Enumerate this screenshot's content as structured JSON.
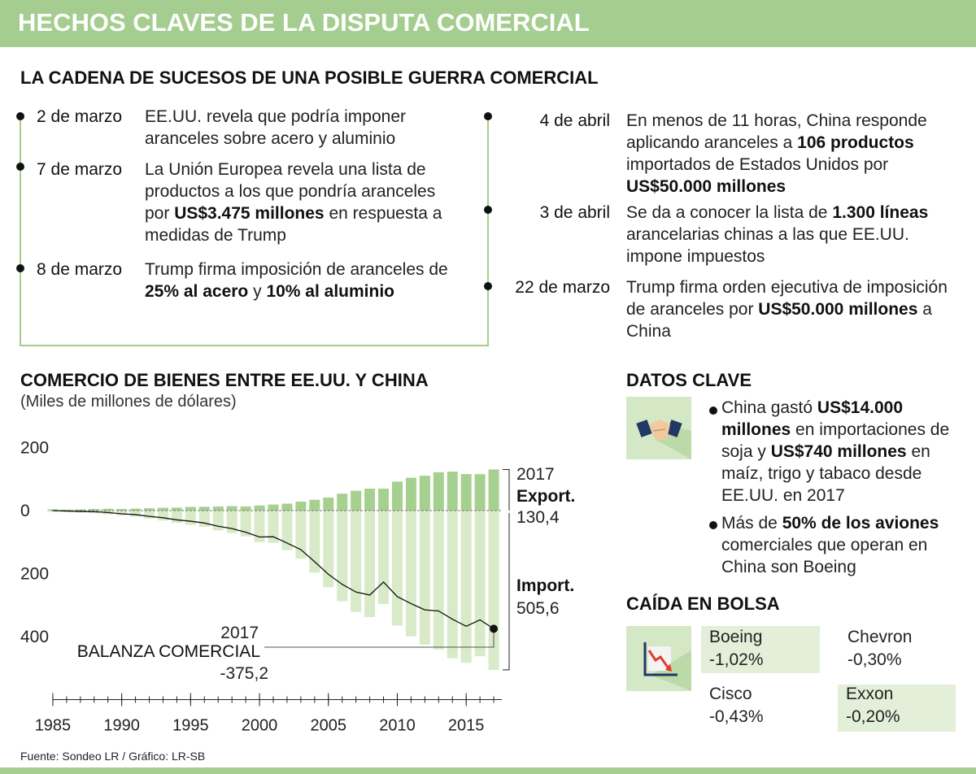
{
  "header": {
    "title": "HECHOS CLAVES DE LA DISPUTA COMERCIAL"
  },
  "timeline": {
    "title": "LA CADENA DE SUCESOS DE UNA POSIBLE GUERRA COMERCIAL",
    "left": [
      {
        "date": "2 de marzo",
        "parts": [
          "EE.UU. revela que podría imponer aranceles sobre acero y aluminio"
        ]
      },
      {
        "date": "7 de marzo",
        "parts": [
          "La Unión Europea revela una lista de productos a los que pondría aranceles por ",
          "US$3.475 millones",
          " en respuesta a medidas de Trump"
        ]
      },
      {
        "date": "8 de marzo",
        "parts": [
          "Trump firma imposición de aranceles de ",
          "25% al acero",
          " y ",
          "10% al aluminio"
        ]
      }
    ],
    "right": [
      {
        "date": "4 de abril",
        "parts": [
          "En menos de 11 horas, China responde aplicando aranceles a ",
          "106  productos",
          " importados de Estados Unidos por ",
          "US$50.000 millones"
        ]
      },
      {
        "date": "3 de abril",
        "parts": [
          "Se da a conocer la lista de ",
          "1.300 líneas",
          " arancelarias chinas a las que EE.UU. impone impuestos"
        ]
      },
      {
        "date": "22 de marzo",
        "parts": [
          "Trump firma orden ejecutiva de imposición de aranceles por ",
          "US$50.000 millones",
          " a China"
        ]
      }
    ]
  },
  "chart_data": {
    "type": "bar",
    "title": "COMERCIO DE BIENES ENTRE EE.UU. Y CHINA",
    "subtitle": "(Miles de millones de dólares)",
    "x": [
      1985,
      1986,
      1987,
      1988,
      1989,
      1990,
      1991,
      1992,
      1993,
      1994,
      1995,
      1996,
      1997,
      1998,
      1999,
      2000,
      2001,
      2002,
      2003,
      2004,
      2005,
      2006,
      2007,
      2008,
      2009,
      2010,
      2011,
      2012,
      2013,
      2014,
      2015,
      2016,
      2017
    ],
    "xlim": [
      1984,
      2018
    ],
    "xticks": [
      1985,
      1990,
      1995,
      2000,
      2005,
      2010,
      2015
    ],
    "ylim": [
      -600,
      240
    ],
    "yticks": [
      {
        "value": -400,
        "label": "400"
      },
      {
        "value": -200,
        "label": "200"
      },
      0,
      200
    ],
    "series": [
      {
        "name": "Export.",
        "color": "#a6d08f",
        "values": [
          3.9,
          3.1,
          3.5,
          5.0,
          5.8,
          4.8,
          6.3,
          7.4,
          8.8,
          9.3,
          11.8,
          12.0,
          12.9,
          14.2,
          13.1,
          16.2,
          19.2,
          22.1,
          28.4,
          34.4,
          41.2,
          53.7,
          62.9,
          69.7,
          69.5,
          91.9,
          104.1,
          110.5,
          121.7,
          123.7,
          115.9,
          115.6,
          130.4
        ],
        "value_labels": [
          null,
          null,
          null,
          null,
          null,
          null,
          null,
          null,
          null,
          null,
          null,
          null,
          null,
          null,
          null,
          null,
          null,
          null,
          null,
          null,
          null,
          null,
          null,
          null,
          null,
          null,
          null,
          null,
          null,
          null,
          null,
          null,
          "130,4"
        ]
      },
      {
        "name": "Import.",
        "color": "#d8eac8",
        "values": [
          -3.9,
          -4.8,
          -6.3,
          -8.5,
          -12.0,
          -15.2,
          -19.0,
          -25.7,
          -31.5,
          -38.8,
          -45.5,
          -51.5,
          -62.6,
          -71.2,
          -81.8,
          -100.0,
          -102.3,
          -125.2,
          -152.4,
          -196.7,
          -243.5,
          -287.8,
          -321.4,
          -337.8,
          -296.4,
          -364.9,
          -399.4,
          -425.6,
          -440.4,
          -468.5,
          -483.2,
          -462.4,
          -505.6
        ],
        "value_labels": [
          null,
          null,
          null,
          null,
          null,
          null,
          null,
          null,
          null,
          null,
          null,
          null,
          null,
          null,
          null,
          null,
          null,
          null,
          null,
          null,
          null,
          null,
          null,
          null,
          null,
          null,
          null,
          null,
          null,
          null,
          null,
          null,
          "505,6"
        ]
      },
      {
        "name": "BALANZA COMERCIAL",
        "type": "line",
        "color": "#111111",
        "values": [
          0,
          -1.7,
          -2.8,
          -3.5,
          -6.2,
          -10.4,
          -12.7,
          -18.3,
          -22.7,
          -29.5,
          -33.7,
          -39.5,
          -49.7,
          -57.0,
          -68.7,
          -83.8,
          -83.1,
          -103.1,
          -124.0,
          -162.3,
          -202.3,
          -234.1,
          -258.5,
          -268.1,
          -226.9,
          -273.0,
          -295.3,
          -315.1,
          -318.7,
          -344.8,
          -367.3,
          -346.8,
          -375.2
        ],
        "value_labels": [
          null,
          null,
          null,
          null,
          null,
          null,
          null,
          null,
          null,
          null,
          null,
          null,
          null,
          null,
          null,
          null,
          null,
          null,
          null,
          null,
          null,
          null,
          null,
          null,
          null,
          null,
          null,
          null,
          null,
          null,
          null,
          null,
          "-375,2"
        ]
      }
    ],
    "annotations": [
      "2017",
      "2017"
    ]
  },
  "key_facts": {
    "title": "DATOS CLAVE",
    "items": [
      {
        "parts": [
          "China gastó ",
          "US$14.000 millones",
          " en importaciones de soja y ",
          "US$740 millones",
          " en maíz, trigo y tabaco desde EE.UU. en 2017"
        ]
      },
      {
        "parts": [
          "Más de ",
          "50% de los aviones",
          " comerciales que operan en China son Boeing"
        ]
      }
    ]
  },
  "stocks": {
    "title": "CAÍDA EN BOLSA",
    "items": [
      {
        "name": "Boeing",
        "change": "-1,02%"
      },
      {
        "name": "Chevron",
        "change": "-0,30%"
      },
      {
        "name": "Cisco",
        "change": "-0,43%"
      },
      {
        "name": "Exxon",
        "change": "-0,20%"
      }
    ]
  },
  "footer": {
    "source": "Fuente: Sondeo LR  / Gráfico: LR-SB"
  }
}
